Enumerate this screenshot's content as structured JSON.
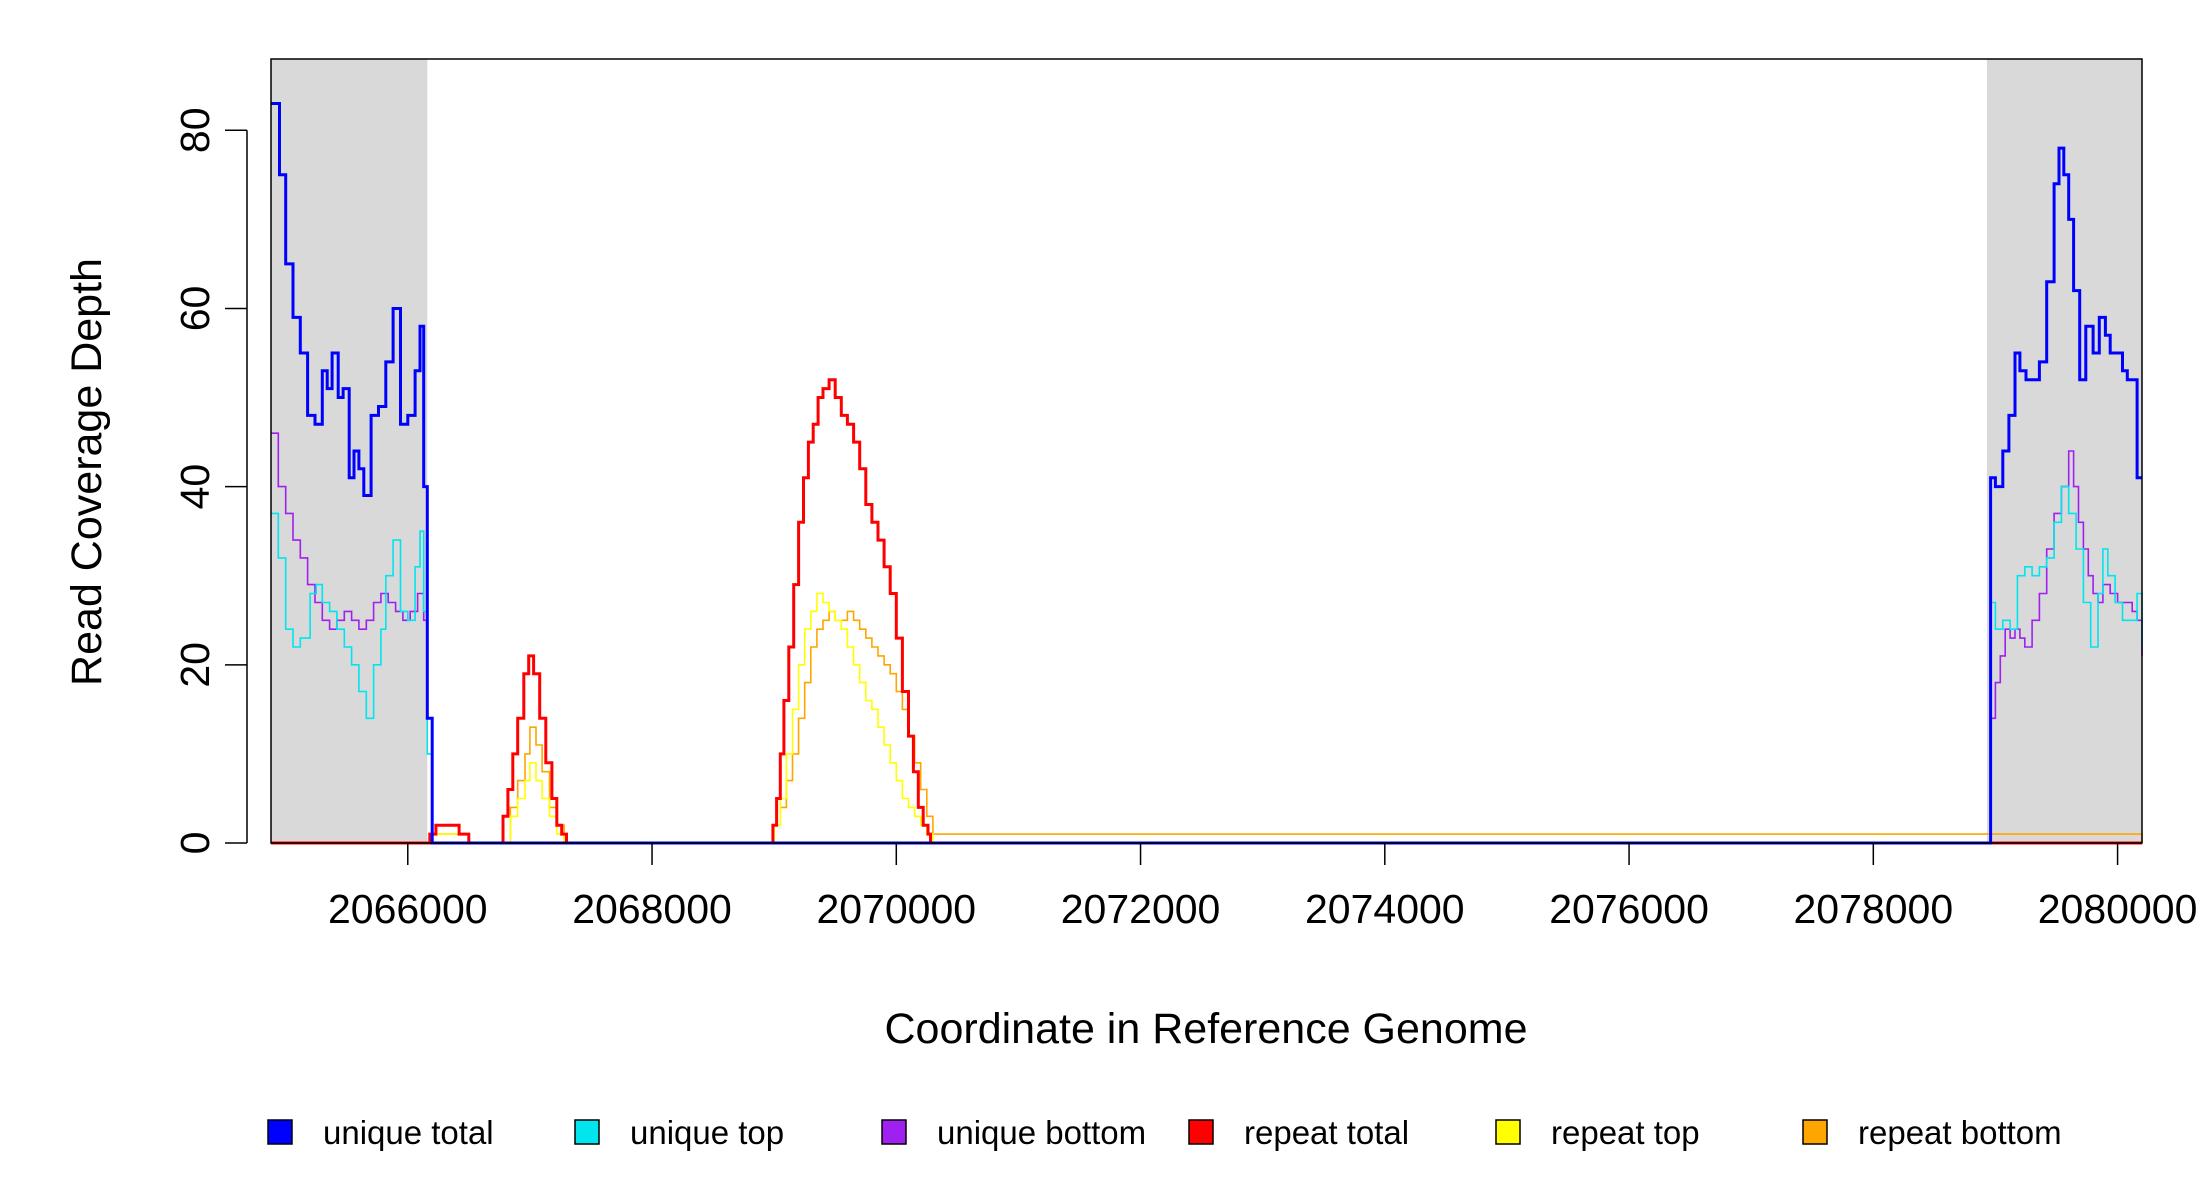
{
  "chart_data": {
    "type": "line",
    "title": "",
    "xlabel": "Coordinate in Reference Genome",
    "ylabel": "Read Coverage Depth",
    "xlim": [
      2064880,
      2080200
    ],
    "ylim": [
      0,
      88
    ],
    "x_ticks": [
      2066000,
      2068000,
      2070000,
      2072000,
      2074000,
      2076000,
      2078000,
      2080000
    ],
    "x_tick_labels": [
      "2066000",
      "2068000",
      "2070000",
      "2072000",
      "2074000",
      "2076000",
      "2078000",
      "2080000"
    ],
    "y_ticks": [
      0,
      20,
      40,
      60,
      80
    ],
    "y_tick_labels": [
      "0",
      "20",
      "40",
      "60",
      "80"
    ],
    "shaded_regions": [
      {
        "x_start": 2064880,
        "x_end": 2066160,
        "color": "#d9d9d9"
      },
      {
        "x_start": 2078930,
        "x_end": 2080200,
        "color": "#d9d9d9"
      }
    ],
    "legend_placement": "bottom",
    "series": [
      {
        "name": "unique total",
        "color": "#0000ff",
        "x": [
          2064880,
          2064950,
          2065000,
          2065060,
          2065120,
          2065180,
          2065240,
          2065300,
          2065340,
          2065380,
          2065430,
          2065470,
          2065520,
          2065560,
          2065600,
          2065640,
          2065700,
          2065760,
          2065820,
          2065880,
          2065940,
          2066000,
          2066060,
          2066100,
          2066130,
          2066160,
          2066200,
          2066300,
          2078930,
          2078960,
          2079000,
          2079060,
          2079110,
          2079160,
          2079200,
          2079250,
          2079300,
          2079360,
          2079420,
          2079480,
          2079520,
          2079560,
          2079600,
          2079640,
          2079690,
          2079740,
          2079800,
          2079850,
          2079900,
          2079940,
          2079990,
          2080040,
          2080080,
          2080120,
          2080160,
          2080200
        ],
        "y": [
          83,
          75,
          65,
          59,
          55,
          48,
          47,
          53,
          51,
          55,
          50,
          51,
          41,
          44,
          42,
          39,
          48,
          49,
          54,
          60,
          47,
          48,
          53,
          58,
          40,
          14,
          0,
          0,
          0,
          41,
          40,
          44,
          48,
          55,
          53,
          52,
          52,
          54,
          63,
          74,
          78,
          75,
          70,
          62,
          52,
          58,
          55,
          59,
          57,
          55,
          55,
          53,
          52,
          52,
          41,
          41
        ]
      },
      {
        "name": "unique top",
        "color": "#00e5ee",
        "x": [
          2064880,
          2064940,
          2065000,
          2065060,
          2065120,
          2065200,
          2065250,
          2065300,
          2065360,
          2065420,
          2065480,
          2065540,
          2065600,
          2065660,
          2065720,
          2065780,
          2065820,
          2065880,
          2065940,
          2066000,
          2066060,
          2066100,
          2066130,
          2066160,
          2066200,
          2066300,
          2078930,
          2078960,
          2079000,
          2079060,
          2079120,
          2079180,
          2079240,
          2079300,
          2079360,
          2079420,
          2079480,
          2079540,
          2079600,
          2079660,
          2079720,
          2079780,
          2079840,
          2079880,
          2079920,
          2079980,
          2080040,
          2080100,
          2080160,
          2080200
        ],
        "y": [
          37,
          32,
          24,
          22,
          23,
          28,
          29,
          27,
          26,
          24,
          22,
          20,
          17,
          14,
          20,
          24,
          30,
          34,
          26,
          25,
          31,
          35,
          26,
          10,
          0,
          0,
          0,
          27,
          24,
          25,
          24,
          30,
          31,
          30,
          31,
          32,
          36,
          40,
          37,
          33,
          27,
          22,
          28,
          33,
          30,
          27,
          25,
          25,
          28,
          22
        ]
      },
      {
        "name": "unique bottom",
        "color": "#a020f0",
        "x": [
          2064880,
          2064940,
          2065000,
          2065060,
          2065120,
          2065180,
          2065240,
          2065300,
          2065360,
          2065420,
          2065480,
          2065540,
          2065600,
          2065660,
          2065720,
          2065780,
          2065840,
          2065900,
          2065960,
          2066020,
          2066080,
          2066130,
          2066160,
          2066200,
          2066300,
          2078930,
          2078960,
          2079000,
          2079040,
          2079080,
          2079120,
          2079160,
          2079200,
          2079240,
          2079300,
          2079360,
          2079420,
          2079480,
          2079540,
          2079600,
          2079640,
          2079680,
          2079720,
          2079760,
          2079800,
          2079840,
          2079880,
          2079940,
          2080000,
          2080060,
          2080120,
          2080160,
          2080200
        ],
        "y": [
          46,
          40,
          37,
          34,
          32,
          29,
          27,
          25,
          24,
          25,
          26,
          25,
          24,
          25,
          27,
          28,
          27,
          26,
          25,
          26,
          28,
          25,
          14,
          0,
          0,
          0,
          14,
          18,
          21,
          24,
          23,
          24,
          23,
          22,
          25,
          28,
          33,
          37,
          40,
          44,
          40,
          36,
          33,
          30,
          28,
          27,
          29,
          28,
          27,
          27,
          26,
          25,
          21
        ]
      },
      {
        "name": "repeat total",
        "color": "#ff0000",
        "x": [
          2064880,
          2066160,
          2066180,
          2066230,
          2066300,
          2066370,
          2066420,
          2066500,
          2066620,
          2066720,
          2066780,
          2066820,
          2066860,
          2066900,
          2066950,
          2066990,
          2067030,
          2067080,
          2067130,
          2067180,
          2067220,
          2067260,
          2067300,
          2067400,
          2068950,
          2068990,
          2069020,
          2069050,
          2069080,
          2069120,
          2069160,
          2069200,
          2069240,
          2069280,
          2069320,
          2069360,
          2069400,
          2069450,
          2069500,
          2069550,
          2069600,
          2069650,
          2069700,
          2069750,
          2069800,
          2069850,
          2069900,
          2069950,
          2070000,
          2070050,
          2070100,
          2070140,
          2070180,
          2070220,
          2070260,
          2070280,
          2070300,
          2070320,
          2080200
        ],
        "y": [
          0,
          0,
          1,
          2,
          2,
          2,
          1,
          0,
          0,
          0,
          3,
          6,
          10,
          14,
          19,
          21,
          19,
          14,
          9,
          5,
          2,
          1,
          0,
          0,
          0,
          2,
          5,
          10,
          16,
          22,
          29,
          36,
          41,
          45,
          47,
          50,
          51,
          52,
          50,
          48,
          47,
          45,
          42,
          38,
          36,
          34,
          31,
          28,
          23,
          17,
          12,
          8,
          4,
          2,
          1,
          0,
          0,
          0,
          0
        ]
      },
      {
        "name": "repeat top",
        "color": "#ffff00",
        "x": [
          2064880,
          2066160,
          2066200,
          2066300,
          2066400,
          2066500,
          2066780,
          2066840,
          2066900,
          2066960,
          2067000,
          2067050,
          2067100,
          2067160,
          2067220,
          2067280,
          2067330,
          2068950,
          2069000,
          2069050,
          2069100,
          2069150,
          2069200,
          2069250,
          2069300,
          2069350,
          2069400,
          2069450,
          2069500,
          2069550,
          2069600,
          2069650,
          2069700,
          2069750,
          2069800,
          2069850,
          2069900,
          2069950,
          2070000,
          2070050,
          2070100,
          2070150,
          2070200,
          2070250,
          2070300,
          2080200
        ],
        "y": [
          0,
          0,
          1,
          1,
          1,
          0,
          0,
          3,
          5,
          7,
          9,
          7,
          5,
          3,
          1,
          0,
          0,
          0,
          2,
          5,
          10,
          15,
          20,
          24,
          26,
          28,
          27,
          26,
          25,
          24,
          22,
          20,
          18,
          16,
          15,
          13,
          11,
          9,
          7,
          5,
          4,
          3,
          2,
          1,
          0,
          0
        ]
      },
      {
        "name": "repeat bottom",
        "color": "#ffa500",
        "x": [
          2064880,
          2066160,
          2066200,
          2066300,
          2066400,
          2066500,
          2066780,
          2066840,
          2066900,
          2066960,
          2067000,
          2067050,
          2067100,
          2067160,
          2067220,
          2067280,
          2067330,
          2068950,
          2069000,
          2069050,
          2069100,
          2069150,
          2069200,
          2069250,
          2069300,
          2069350,
          2069400,
          2069450,
          2069500,
          2069550,
          2069600,
          2069650,
          2069700,
          2069750,
          2069800,
          2069850,
          2069900,
          2069950,
          2070000,
          2070050,
          2070100,
          2070150,
          2070200,
          2070250,
          2070300,
          2080200
        ],
        "y": [
          0,
          0,
          1,
          1,
          1,
          0,
          0,
          4,
          7,
          10,
          13,
          11,
          8,
          4,
          2,
          0,
          0,
          0,
          2,
          4,
          7,
          10,
          14,
          18,
          22,
          24,
          25,
          26,
          25,
          25,
          26,
          25,
          24,
          23,
          22,
          21,
          20,
          19,
          17,
          15,
          12,
          9,
          6,
          3,
          1,
          0
        ]
      }
    ]
  }
}
